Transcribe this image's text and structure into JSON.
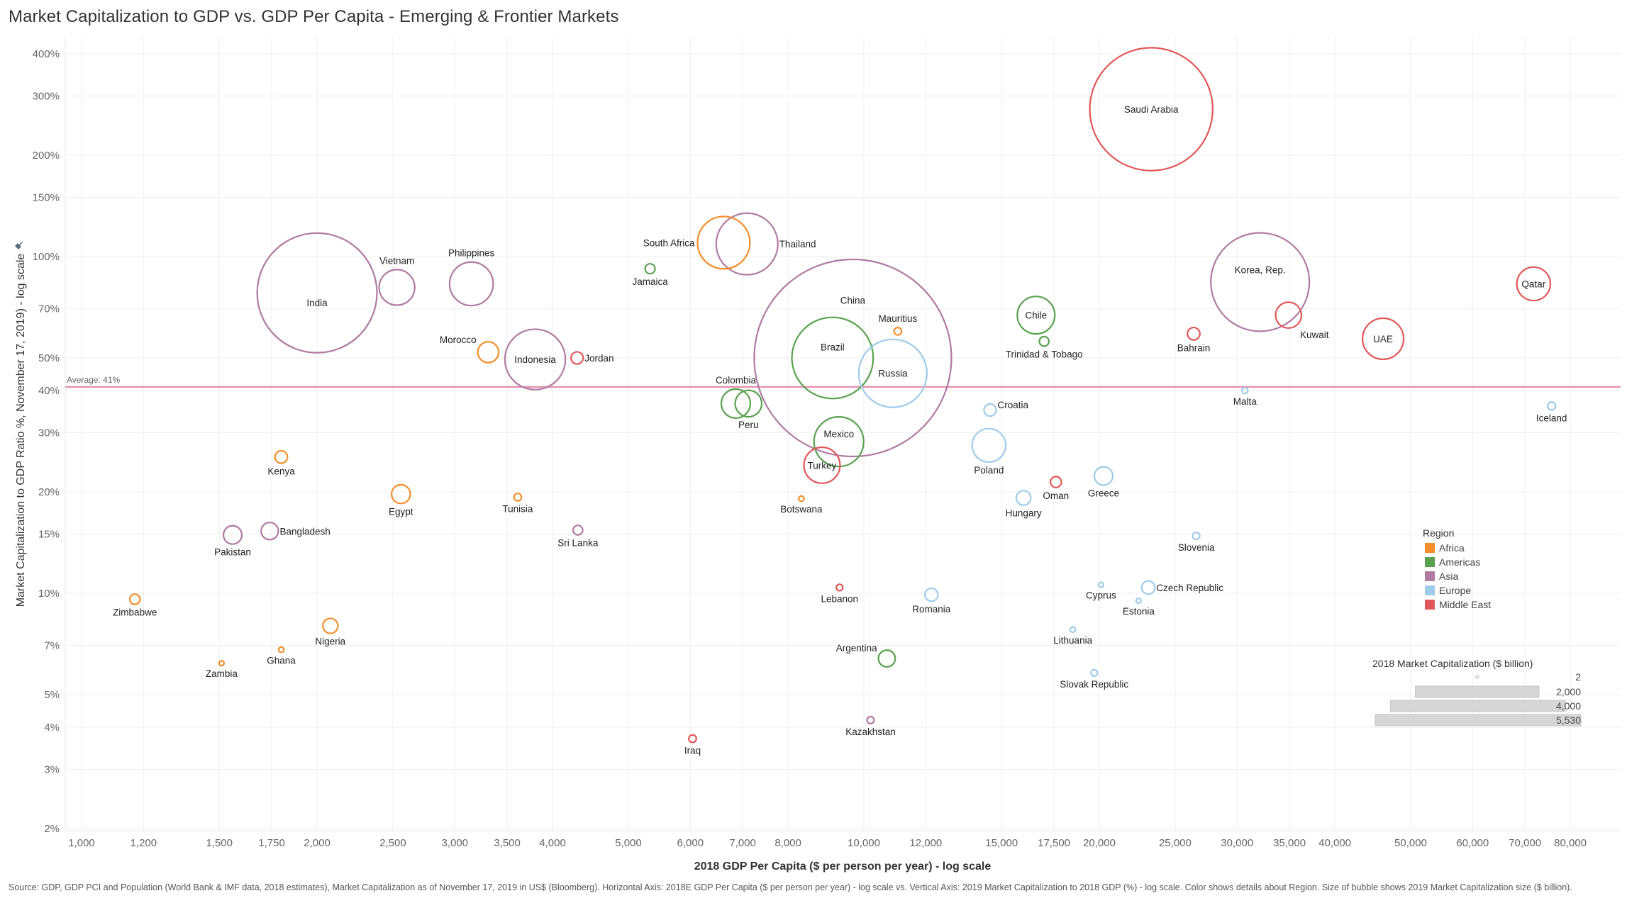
{
  "title": "Market Capitalization to GDP vs. GDP Per Capita - Emerging & Frontier Markets",
  "footnote": "Source: GDP, GDP PCI and Population (World Bank & IMF data, 2018 estimates), Market Capitalization as of November 17, 2019 in US$ (Bloomberg). Horizontal Axis: 2018E GDP Per Capita ($ per person per year) - log scale vs. Vertical Axis: 2019 Market Capitalization to 2018 GDP (%) - log scale.  Color shows details about Region.  Size of bubble shows 2019 Market Capitalization size ($ billion).",
  "chart_data": {
    "type": "scatter",
    "subtype": "bubble",
    "title": "Market Capitalization to GDP vs. GDP Per Capita - Emerging & Frontier Markets",
    "xlabel": "2018 GDP Per Capita ($ per person per year) - log scale",
    "ylabel": "Market Capitalization to GDP Ratio %, November 17, 2019) - log scale",
    "x_scale": "log",
    "y_scale": "log",
    "xlim": [
      920,
      90000
    ],
    "ylim": [
      1.92,
      440
    ],
    "x_ticks": [
      1000,
      1200,
      1500,
      1750,
      2000,
      2500,
      3000,
      3500,
      4000,
      5000,
      6000,
      7000,
      8000,
      10000,
      12000,
      15000,
      17500,
      20000,
      25000,
      30000,
      35000,
      40000,
      50000,
      60000,
      70000,
      80000
    ],
    "x_tick_labels": [
      "1,000",
      "1,200",
      "1,500",
      "1,750",
      "2,000",
      "2,500",
      "3,000",
      "3,500",
      "4,000",
      "5,000",
      "6,000",
      "7,000",
      "8,000",
      "10,000",
      "12,000",
      "15,000",
      "17,500",
      "20,000",
      "25,000",
      "30,000",
      "35,000",
      "40,000",
      "50,000",
      "60,000",
      "70,000",
      "80,000"
    ],
    "y_ticks": [
      2,
      3,
      4,
      5,
      7,
      10,
      15,
      20,
      30,
      40,
      50,
      70,
      100,
      150,
      200,
      300,
      400
    ],
    "y_tick_labels": [
      "2%",
      "3%",
      "4%",
      "5%",
      "7%",
      "10%",
      "15%",
      "20%",
      "30%",
      "40%",
      "50%",
      "70%",
      "100%",
      "150%",
      "200%",
      "300%",
      "400%"
    ],
    "grid": true,
    "reference_line": {
      "axis": "y",
      "value": 41,
      "label": "Average: 41%",
      "color": "#E394B0"
    },
    "regions": [
      {
        "name": "Africa",
        "color": "#F28E2B"
      },
      {
        "name": "Americas",
        "color": "#59A14F"
      },
      {
        "name": "Asia",
        "color": "#B07AA1"
      },
      {
        "name": "Europe",
        "color": "#A0CBE8"
      },
      {
        "name": "Middle East",
        "color": "#E15759"
      }
    ],
    "size_legend": {
      "title": "2018 Market Capitalization ($ billion)",
      "values": [
        2,
        2000,
        4000,
        5530
      ],
      "labels": [
        "2",
        "2,000",
        "4,000",
        "5,530"
      ]
    },
    "legend_position": "bottom-right",
    "points": [
      {
        "name": "Saudi Arabia",
        "region": "Middle East",
        "gdp_pc": 23300,
        "mcap_gdp": 274,
        "mcap": 2150,
        "label_pos": "center"
      },
      {
        "name": "India",
        "region": "Asia",
        "gdp_pc": 2000,
        "mcap_gdp": 78,
        "mcap": 2040,
        "label_pos": "center-below"
      },
      {
        "name": "Vietnam",
        "region": "Asia",
        "gdp_pc": 2530,
        "mcap_gdp": 81,
        "mcap": 180,
        "label_pos": "top"
      },
      {
        "name": "Philippines",
        "region": "Asia",
        "gdp_pc": 3150,
        "mcap_gdp": 83,
        "mcap": 270,
        "label_pos": "top"
      },
      {
        "name": "South Africa",
        "region": "Africa",
        "gdp_pc": 6620,
        "mcap_gdp": 110,
        "mcap": 390,
        "label_pos": "left"
      },
      {
        "name": "Thailand",
        "region": "Asia",
        "gdp_pc": 7090,
        "mcap_gdp": 109,
        "mcap": 540,
        "label_pos": "right"
      },
      {
        "name": "Jamaica",
        "region": "Americas",
        "gdp_pc": 5330,
        "mcap_gdp": 92,
        "mcap": 14,
        "label_pos": "bottom"
      },
      {
        "name": "China",
        "region": "Asia",
        "gdp_pc": 9680,
        "mcap_gdp": 50,
        "mcap": 5530,
        "label_pos": "top-inside"
      },
      {
        "name": "Brazil",
        "region": "Americas",
        "gdp_pc": 9120,
        "mcap_gdp": 50,
        "mcap": 940,
        "label_pos": "center-above"
      },
      {
        "name": "Russia",
        "region": "Europe",
        "gdp_pc": 10890,
        "mcap_gdp": 45,
        "mcap": 660,
        "label_pos": "center"
      },
      {
        "name": "Mauritius",
        "region": "Africa",
        "gdp_pc": 11050,
        "mcap_gdp": 60,
        "mcap": 8,
        "label_pos": "top"
      },
      {
        "name": "Korea, Rep.",
        "region": "Asia",
        "gdp_pc": 32100,
        "mcap_gdp": 84,
        "mcap": 1380,
        "label_pos": "center-above"
      },
      {
        "name": "Kuwait",
        "region": "Middle East",
        "gdp_pc": 34900,
        "mcap_gdp": 67,
        "mcap": 95,
        "label_pos": "bottom-right"
      },
      {
        "name": "Qatar",
        "region": "Middle East",
        "gdp_pc": 71800,
        "mcap_gdp": 83,
        "mcap": 160,
        "label_pos": "center"
      },
      {
        "name": "UAE",
        "region": "Middle East",
        "gdp_pc": 46100,
        "mcap_gdp": 57,
        "mcap": 240,
        "label_pos": "center"
      },
      {
        "name": "Chile",
        "region": "Americas",
        "gdp_pc": 16600,
        "mcap_gdp": 67,
        "mcap": 200,
        "label_pos": "center"
      },
      {
        "name": "Trinidad & Tobago",
        "region": "Americas",
        "gdp_pc": 17000,
        "mcap_gdp": 56,
        "mcap": 13,
        "label_pos": "bottom"
      },
      {
        "name": "Bahrain",
        "region": "Middle East",
        "gdp_pc": 26400,
        "mcap_gdp": 59,
        "mcap": 22,
        "label_pos": "bottom"
      },
      {
        "name": "Malta",
        "region": "Europe",
        "gdp_pc": 30700,
        "mcap_gdp": 40,
        "mcap": 5,
        "label_pos": "bottom"
      },
      {
        "name": "Iceland",
        "region": "Europe",
        "gdp_pc": 75700,
        "mcap_gdp": 36,
        "mcap": 9,
        "label_pos": "bottom"
      },
      {
        "name": "Morocco",
        "region": "Africa",
        "gdp_pc": 3310,
        "mcap_gdp": 52,
        "mcap": 62,
        "label_pos": "top-left"
      },
      {
        "name": "Indonesia",
        "region": "Asia",
        "gdp_pc": 3800,
        "mcap_gdp": 49.5,
        "mcap": 520,
        "label_pos": "center"
      },
      {
        "name": "Jordan",
        "region": "Middle East",
        "gdp_pc": 4300,
        "mcap_gdp": 50,
        "mcap": 21,
        "label_pos": "right"
      },
      {
        "name": "Colombia",
        "region": "Americas",
        "gdp_pc": 6860,
        "mcap_gdp": 36.6,
        "mcap": 120,
        "label_pos": "top"
      },
      {
        "name": "Peru",
        "region": "Americas",
        "gdp_pc": 7120,
        "mcap_gdp": 36.6,
        "mcap": 100,
        "label_pos": "bottom"
      },
      {
        "name": "Mexico",
        "region": "Americas",
        "gdp_pc": 9290,
        "mcap_gdp": 28.2,
        "mcap": 350,
        "label_pos": "center-above"
      },
      {
        "name": "Turkey",
        "region": "Middle East",
        "gdp_pc": 8840,
        "mcap_gdp": 24,
        "mcap": 185,
        "label_pos": "center"
      },
      {
        "name": "Croatia",
        "region": "Europe",
        "gdp_pc": 14500,
        "mcap_gdp": 35,
        "mcap": 21,
        "label_pos": "top-right"
      },
      {
        "name": "Poland",
        "region": "Europe",
        "gdp_pc": 14450,
        "mcap_gdp": 27.5,
        "mcap": 160,
        "label_pos": "bottom"
      },
      {
        "name": "Hungary",
        "region": "Europe",
        "gdp_pc": 16000,
        "mcap_gdp": 19.2,
        "mcap": 30,
        "label_pos": "bottom"
      },
      {
        "name": "Oman",
        "region": "Middle East",
        "gdp_pc": 17600,
        "mcap_gdp": 21.4,
        "mcap": 17,
        "label_pos": "bottom"
      },
      {
        "name": "Greece",
        "region": "Europe",
        "gdp_pc": 20250,
        "mcap_gdp": 22.3,
        "mcap": 48,
        "label_pos": "bottom"
      },
      {
        "name": "Slovenia",
        "region": "Europe",
        "gdp_pc": 26600,
        "mcap_gdp": 14.8,
        "mcap": 7,
        "label_pos": "bottom"
      },
      {
        "name": "Cyprus",
        "region": "Europe",
        "gdp_pc": 20100,
        "mcap_gdp": 10.6,
        "mcap": 2.5,
        "label_pos": "bottom"
      },
      {
        "name": "Czech Republic",
        "region": "Europe",
        "gdp_pc": 23100,
        "mcap_gdp": 10.4,
        "mcap": 25,
        "label_pos": "right"
      },
      {
        "name": "Estonia",
        "region": "Europe",
        "gdp_pc": 22450,
        "mcap_gdp": 9.5,
        "mcap": 3,
        "label_pos": "bottom"
      },
      {
        "name": "Lithuania",
        "region": "Europe",
        "gdp_pc": 18500,
        "mcap_gdp": 7.8,
        "mcap": 4,
        "label_pos": "bottom"
      },
      {
        "name": "Slovak Republic",
        "region": "Europe",
        "gdp_pc": 19700,
        "mcap_gdp": 5.8,
        "mcap": 6,
        "label_pos": "bottom"
      },
      {
        "name": "Kenya",
        "region": "Africa",
        "gdp_pc": 1800,
        "mcap_gdp": 25.4,
        "mcap": 22,
        "label_pos": "bottom"
      },
      {
        "name": "Egypt",
        "region": "Africa",
        "gdp_pc": 2560,
        "mcap_gdp": 19.7,
        "mcap": 50,
        "label_pos": "bottom"
      },
      {
        "name": "Tunisia",
        "region": "Africa",
        "gdp_pc": 3610,
        "mcap_gdp": 19.3,
        "mcap": 8,
        "label_pos": "bottom"
      },
      {
        "name": "Botswana",
        "region": "Africa",
        "gdp_pc": 8320,
        "mcap_gdp": 19.1,
        "mcap": 4,
        "label_pos": "bottom"
      },
      {
        "name": "Bangladesh",
        "region": "Asia",
        "gdp_pc": 1740,
        "mcap_gdp": 15.3,
        "mcap": 42,
        "label_pos": "right"
      },
      {
        "name": "Pakistan",
        "region": "Asia",
        "gdp_pc": 1560,
        "mcap_gdp": 14.9,
        "mcap": 48,
        "label_pos": "bottom"
      },
      {
        "name": "Sri Lanka",
        "region": "Asia",
        "gdp_pc": 4310,
        "mcap_gdp": 15.4,
        "mcap": 13,
        "label_pos": "bottom"
      },
      {
        "name": "Zimbabwe",
        "region": "Africa",
        "gdp_pc": 1170,
        "mcap_gdp": 9.6,
        "mcap": 15,
        "label_pos": "bottom"
      },
      {
        "name": "Nigeria",
        "region": "Africa",
        "gdp_pc": 2080,
        "mcap_gdp": 8.0,
        "mcap": 32,
        "label_pos": "bottom"
      },
      {
        "name": "Ghana",
        "region": "Africa",
        "gdp_pc": 1800,
        "mcap_gdp": 6.8,
        "mcap": 4,
        "label_pos": "bottom"
      },
      {
        "name": "Zambia",
        "region": "Africa",
        "gdp_pc": 1510,
        "mcap_gdp": 6.2,
        "mcap": 2,
        "label_pos": "bottom"
      },
      {
        "name": "Lebanon",
        "region": "Middle East",
        "gdp_pc": 9310,
        "mcap_gdp": 10.4,
        "mcap": 6,
        "label_pos": "bottom"
      },
      {
        "name": "Romania",
        "region": "Europe",
        "gdp_pc": 12200,
        "mcap_gdp": 9.9,
        "mcap": 24,
        "label_pos": "bottom"
      },
      {
        "name": "Argentina",
        "region": "Americas",
        "gdp_pc": 10700,
        "mcap_gdp": 6.4,
        "mcap": 40,
        "label_pos": "top-left"
      },
      {
        "name": "Kazakhstan",
        "region": "Asia",
        "gdp_pc": 10200,
        "mcap_gdp": 4.2,
        "mcap": 7,
        "label_pos": "bottom"
      },
      {
        "name": "Iraq",
        "region": "Middle East",
        "gdp_pc": 6040,
        "mcap_gdp": 3.7,
        "mcap": 8,
        "label_pos": "bottom"
      }
    ]
  }
}
